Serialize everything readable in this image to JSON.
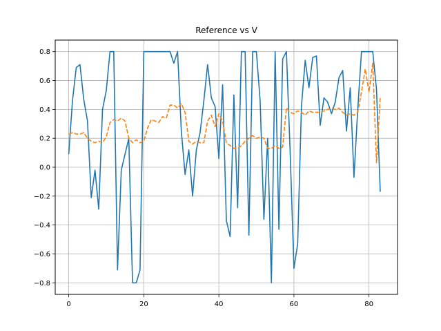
{
  "chart_data": {
    "type": "line",
    "title": "Reference vs V",
    "xlabel": "",
    "ylabel": "",
    "xlim": [
      -3.6,
      87.6
    ],
    "ylim": [
      -0.88,
      0.88
    ],
    "xticks": [
      0,
      20,
      40,
      60,
      80
    ],
    "yticks": [
      -0.8,
      -0.6,
      -0.4,
      -0.2,
      0.0,
      0.2,
      0.4,
      0.6,
      0.8
    ],
    "xtick_labels": [
      "0",
      "20",
      "40",
      "60",
      "80"
    ],
    "ytick_labels": [
      "−0.8",
      "−0.6",
      "−0.4",
      "−0.2",
      "0.0",
      "0.2",
      "0.4",
      "0.6",
      "0.8"
    ],
    "grid": true,
    "legend": "none",
    "series": [
      {
        "style": "solid",
        "color": "#1f77b4",
        "values": [
          0.09,
          0.46,
          0.69,
          0.71,
          0.47,
          0.32,
          -0.21,
          -0.02,
          -0.29,
          0.4,
          0.53,
          0.8,
          0.8,
          -0.71,
          -0.02,
          0.09,
          0.2,
          -0.8,
          -0.8,
          -0.71,
          0.8,
          0.8,
          0.8,
          0.8,
          0.8,
          0.8,
          0.8,
          0.8,
          0.72,
          0.8,
          0.25,
          -0.05,
          0.12,
          -0.2,
          0.12,
          0.24,
          0.46,
          0.71,
          0.48,
          0.42,
          0.06,
          0.57,
          -0.37,
          -0.48,
          0.5,
          -0.28,
          0.8,
          0.8,
          -0.47,
          0.8,
          0.8,
          0.46,
          -0.36,
          0.2,
          -0.8,
          0.8,
          -0.43,
          0.75,
          0.8,
          0.1,
          -0.7,
          -0.53,
          0.42,
          0.74,
          0.55,
          0.76,
          0.77,
          0.29,
          0.48,
          0.45,
          0.37,
          0.45,
          0.62,
          0.67,
          0.25,
          0.55,
          -0.07,
          0.4,
          0.8,
          0.8,
          0.8,
          0.8,
          0.54,
          -0.17
        ]
      },
      {
        "style": "dashed",
        "color": "#ff7f0e",
        "values": [
          0.23,
          0.24,
          0.23,
          0.23,
          0.24,
          0.2,
          0.18,
          0.17,
          0.18,
          0.17,
          0.21,
          0.31,
          0.33,
          0.32,
          0.34,
          0.32,
          0.2,
          0.17,
          0.19,
          0.17,
          0.18,
          0.27,
          0.33,
          0.32,
          0.31,
          0.35,
          0.34,
          0.43,
          0.43,
          0.41,
          0.44,
          0.38,
          0.18,
          0.16,
          0.18,
          0.17,
          0.17,
          0.32,
          0.36,
          0.28,
          0.37,
          0.32,
          0.17,
          0.15,
          0.13,
          0.13,
          0.15,
          0.18,
          0.2,
          0.22,
          0.2,
          0.21,
          0.2,
          0.13,
          0.13,
          0.15,
          0.13,
          0.14,
          0.41,
          0.38,
          0.37,
          0.39,
          0.38,
          0.36,
          0.39,
          0.38,
          0.38,
          0.38,
          0.39,
          0.4,
          0.41,
          0.4,
          0.41,
          0.38,
          0.36,
          0.37,
          0.36,
          0.38,
          0.52,
          0.68,
          0.52,
          0.72,
          0.03,
          0.49
        ]
      }
    ]
  }
}
